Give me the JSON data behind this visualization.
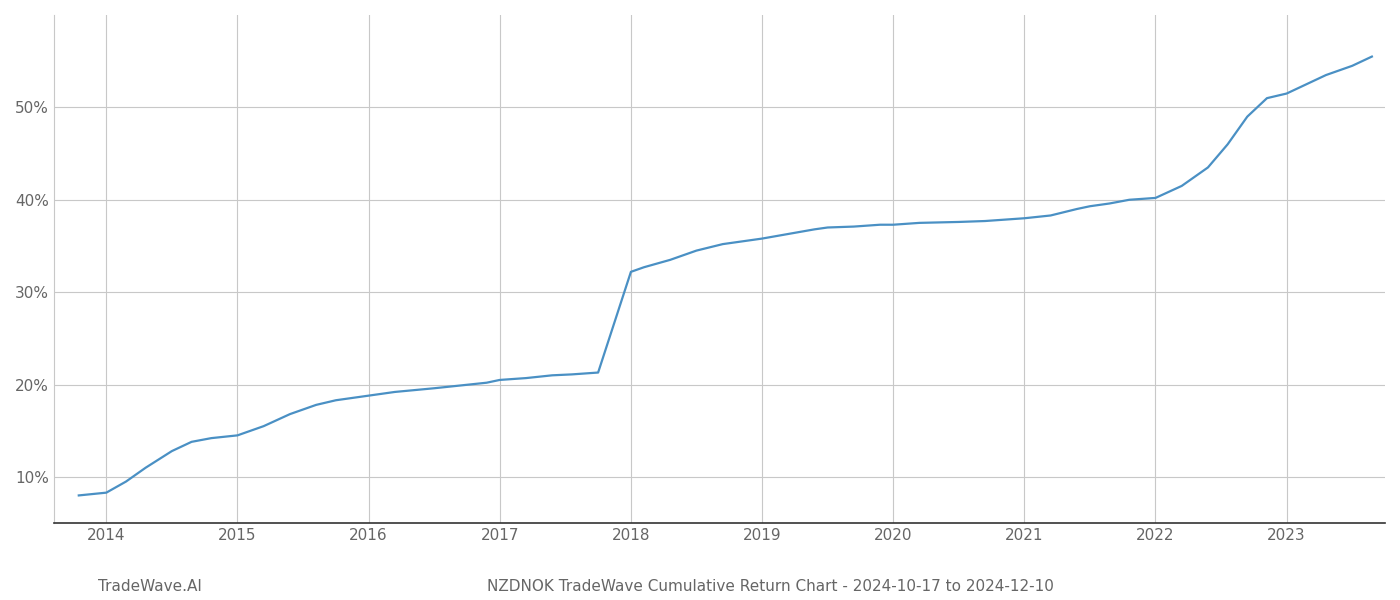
{
  "title": "NZDNOK TradeWave Cumulative Return Chart - 2024-10-17 to 2024-12-10",
  "watermark": "TradeWave.AI",
  "line_color": "#4a90c4",
  "line_width": 1.6,
  "background_color": "#ffffff",
  "grid_color": "#c8c8c8",
  "x_years": [
    2014,
    2015,
    2016,
    2017,
    2018,
    2019,
    2020,
    2021,
    2022,
    2023
  ],
  "x_data": [
    2013.79,
    2014.0,
    2014.15,
    2014.3,
    2014.5,
    2014.65,
    2014.8,
    2015.0,
    2015.2,
    2015.4,
    2015.6,
    2015.75,
    2016.0,
    2016.2,
    2016.5,
    2016.7,
    2016.9,
    2017.0,
    2017.2,
    2017.4,
    2017.55,
    2017.65,
    2017.75,
    2018.0,
    2018.1,
    2018.3,
    2018.5,
    2018.7,
    2018.9,
    2019.0,
    2019.2,
    2019.4,
    2019.5,
    2019.7,
    2019.9,
    2020.0,
    2020.2,
    2020.5,
    2020.7,
    2020.9,
    2021.0,
    2021.2,
    2021.4,
    2021.5,
    2021.65,
    2021.8,
    2022.0,
    2022.2,
    2022.4,
    2022.55,
    2022.7,
    2022.85,
    2023.0,
    2023.15,
    2023.3,
    2023.5,
    2023.65
  ],
  "y_data": [
    8.0,
    8.3,
    9.5,
    11.0,
    12.8,
    13.8,
    14.2,
    14.5,
    15.5,
    16.8,
    17.8,
    18.3,
    18.8,
    19.2,
    19.6,
    19.9,
    20.2,
    20.5,
    20.7,
    21.0,
    21.1,
    21.2,
    21.3,
    32.2,
    32.7,
    33.5,
    34.5,
    35.2,
    35.6,
    35.8,
    36.3,
    36.8,
    37.0,
    37.1,
    37.3,
    37.3,
    37.5,
    37.6,
    37.7,
    37.9,
    38.0,
    38.3,
    39.0,
    39.3,
    39.6,
    40.0,
    40.2,
    41.5,
    43.5,
    46.0,
    49.0,
    51.0,
    51.5,
    52.5,
    53.5,
    54.5,
    55.5
  ],
  "ylim": [
    5,
    60
  ],
  "yticks": [
    10,
    20,
    30,
    40,
    50
  ],
  "xlim": [
    2013.6,
    2023.75
  ],
  "title_fontsize": 11,
  "watermark_fontsize": 11,
  "tick_fontsize": 11,
  "tick_color": "#666666",
  "spine_color": "#333333"
}
